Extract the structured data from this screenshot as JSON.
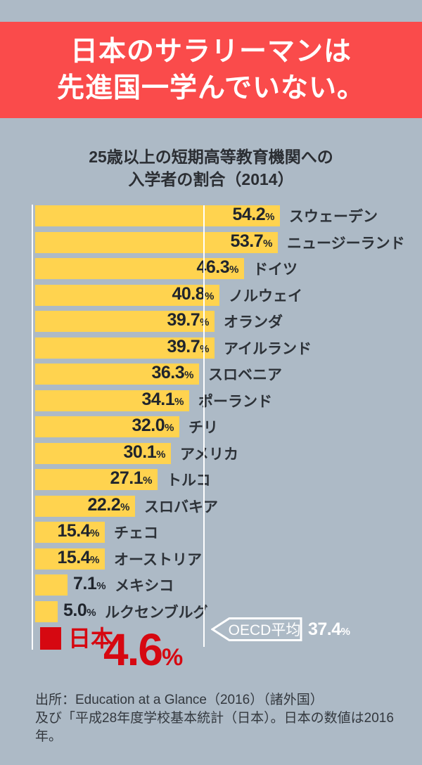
{
  "banner": {
    "line1": "日本のサラリーマンは",
    "line2": "先進国一学んでいない。"
  },
  "title": {
    "line1": "25歳以上の短期高等教育機関への",
    "line2": "入学者の割合（2014）"
  },
  "chart_data": {
    "type": "bar",
    "orientation": "horizontal",
    "title": "25歳以上の短期高等教育機関への入学者の割合（2014）",
    "unit": "%",
    "xlim": [
      0,
      60
    ],
    "grid": false,
    "categories": [
      "スウェーデン",
      "ニュージーランド",
      "ドイツ",
      "ノルウェイ",
      "オランダ",
      "アイルランド",
      "スロベニア",
      "ポーランド",
      "チリ",
      "アメリカ",
      "トルコ",
      "スロバキア",
      "チェコ",
      "オーストリア",
      "メキシコ",
      "ルクセンブルグ"
    ],
    "values": [
      54.2,
      53.7,
      46.3,
      40.8,
      39.7,
      39.7,
      36.3,
      34.1,
      32.0,
      30.1,
      27.1,
      22.2,
      15.4,
      15.4,
      7.1,
      5.0
    ],
    "highlight": {
      "label": "日本",
      "value": 4.6,
      "color": "#d60811"
    },
    "reference_line": {
      "label": "OECD平均",
      "value": 37.4,
      "display": "37.4"
    }
  },
  "source": {
    "line1": "出所：Education at a Glance（2016）（諸外国）",
    "line2": "及び「平成28年度学校基本統計（日本）。日本の数値は2016年。"
  },
  "colors": {
    "background": "#adbac6",
    "banner_red": "#fa4b4b",
    "bar_yellow": "#ffd34f",
    "japan_red": "#d60811",
    "text_dark": "#20252d",
    "white": "#ffffff"
  }
}
